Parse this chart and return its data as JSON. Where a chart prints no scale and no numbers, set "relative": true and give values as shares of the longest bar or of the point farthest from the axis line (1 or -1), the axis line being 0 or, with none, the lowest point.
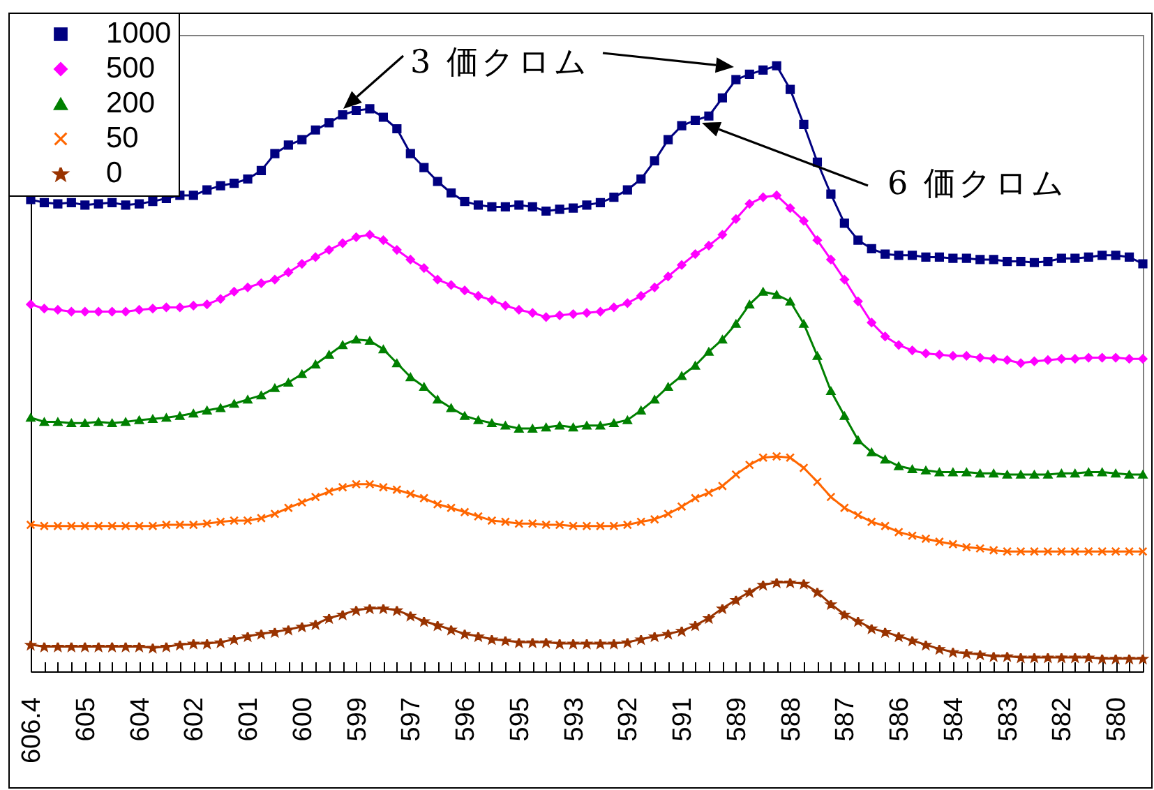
{
  "chart_data": {
    "type": "line",
    "relative": true,
    "categories": [
      "606.4",
      null,
      null,
      null,
      "605",
      null,
      null,
      null,
      "604",
      null,
      null,
      null,
      "602",
      null,
      null,
      null,
      "601",
      null,
      null,
      null,
      "600",
      null,
      null,
      null,
      "599",
      null,
      null,
      null,
      "597",
      null,
      null,
      null,
      "596",
      null,
      null,
      null,
      "595",
      null,
      null,
      null,
      "593",
      null,
      null,
      null,
      "592",
      null,
      null,
      null,
      "591",
      null,
      null,
      null,
      "589",
      null,
      null,
      null,
      "588",
      null,
      null,
      null,
      "587",
      null,
      null,
      null,
      "586",
      null,
      null,
      null,
      "584",
      null,
      null,
      null,
      "583",
      null,
      null,
      null,
      "582",
      null,
      null,
      null,
      "580",
      null,
      null
    ],
    "series": [
      {
        "name": "1000",
        "color": "#000080",
        "marker": "square",
        "values": [
          0.779,
          0.774,
          0.772,
          0.774,
          0.77,
          0.772,
          0.774,
          0.77,
          0.772,
          0.776,
          0.781,
          0.786,
          0.786,
          0.795,
          0.802,
          0.806,
          0.813,
          0.827,
          0.855,
          0.869,
          0.878,
          0.894,
          0.906,
          0.919,
          0.926,
          0.929,
          0.915,
          0.896,
          0.855,
          0.832,
          0.809,
          0.79,
          0.776,
          0.77,
          0.767,
          0.767,
          0.77,
          0.767,
          0.76,
          0.763,
          0.765,
          0.77,
          0.774,
          0.783,
          0.795,
          0.813,
          0.843,
          0.878,
          0.901,
          0.91,
          0.917,
          0.947,
          0.977,
          0.986,
          0.993,
          1,
          0.961,
          0.903,
          0.841,
          0.788,
          0.74,
          0.712,
          0.698,
          0.689,
          0.687,
          0.687,
          0.684,
          0.684,
          0.682,
          0.682,
          0.68,
          0.68,
          0.677,
          0.677,
          0.675,
          0.677,
          0.682,
          0.682,
          0.684,
          0.687,
          0.687,
          0.684,
          0.673
        ]
      },
      {
        "name": "500",
        "color": "#ff00ff",
        "marker": "diamond",
        "values": [
          0.606,
          0.599,
          0.597,
          0.594,
          0.594,
          0.594,
          0.594,
          0.594,
          0.597,
          0.599,
          0.601,
          0.601,
          0.604,
          0.606,
          0.615,
          0.627,
          0.634,
          0.641,
          0.647,
          0.659,
          0.673,
          0.684,
          0.696,
          0.707,
          0.717,
          0.721,
          0.712,
          0.696,
          0.68,
          0.666,
          0.647,
          0.638,
          0.629,
          0.62,
          0.613,
          0.604,
          0.597,
          0.592,
          0.585,
          0.588,
          0.59,
          0.592,
          0.594,
          0.601,
          0.608,
          0.62,
          0.634,
          0.652,
          0.671,
          0.689,
          0.703,
          0.721,
          0.747,
          0.772,
          0.783,
          0.786,
          0.765,
          0.744,
          0.712,
          0.68,
          0.647,
          0.611,
          0.576,
          0.553,
          0.539,
          0.53,
          0.525,
          0.523,
          0.521,
          0.521,
          0.518,
          0.516,
          0.514,
          0.509,
          0.512,
          0.514,
          0.516,
          0.516,
          0.518,
          0.518,
          0.518,
          0.516,
          0.516
        ]
      },
      {
        "name": "200",
        "color": "#008000",
        "marker": "triangle",
        "values": [
          0.419,
          0.412,
          0.412,
          0.41,
          0.41,
          0.412,
          0.41,
          0.412,
          0.415,
          0.417,
          0.419,
          0.422,
          0.426,
          0.431,
          0.435,
          0.442,
          0.449,
          0.456,
          0.468,
          0.477,
          0.491,
          0.507,
          0.523,
          0.539,
          0.548,
          0.546,
          0.532,
          0.509,
          0.486,
          0.47,
          0.449,
          0.435,
          0.422,
          0.415,
          0.41,
          0.406,
          0.401,
          0.401,
          0.403,
          0.406,
          0.403,
          0.406,
          0.406,
          0.41,
          0.415,
          0.431,
          0.449,
          0.47,
          0.488,
          0.505,
          0.528,
          0.548,
          0.574,
          0.606,
          0.627,
          0.622,
          0.611,
          0.574,
          0.521,
          0.463,
          0.422,
          0.382,
          0.362,
          0.35,
          0.339,
          0.334,
          0.332,
          0.329,
          0.329,
          0.329,
          0.327,
          0.327,
          0.325,
          0.325,
          0.325,
          0.325,
          0.327,
          0.327,
          0.329,
          0.329,
          0.327,
          0.325,
          0.325
        ]
      },
      {
        "name": "50",
        "color": "#ff6600",
        "marker": "cross",
        "values": [
          0.242,
          0.24,
          0.24,
          0.24,
          0.24,
          0.24,
          0.24,
          0.24,
          0.24,
          0.24,
          0.242,
          0.242,
          0.242,
          0.244,
          0.247,
          0.249,
          0.249,
          0.253,
          0.26,
          0.27,
          0.279,
          0.288,
          0.297,
          0.304,
          0.309,
          0.309,
          0.304,
          0.3,
          0.293,
          0.286,
          0.276,
          0.27,
          0.263,
          0.256,
          0.249,
          0.247,
          0.244,
          0.244,
          0.242,
          0.242,
          0.24,
          0.24,
          0.24,
          0.24,
          0.242,
          0.247,
          0.251,
          0.26,
          0.272,
          0.286,
          0.295,
          0.306,
          0.325,
          0.341,
          0.353,
          0.355,
          0.353,
          0.336,
          0.313,
          0.288,
          0.27,
          0.258,
          0.247,
          0.24,
          0.23,
          0.224,
          0.219,
          0.214,
          0.21,
          0.205,
          0.203,
          0.2,
          0.198,
          0.198,
          0.198,
          0.198,
          0.198,
          0.198,
          0.198,
          0.198,
          0.198,
          0.198,
          0.198
        ]
      },
      {
        "name": "0",
        "color": "#993300",
        "marker": "star",
        "values": [
          0.044,
          0.041,
          0.041,
          0.041,
          0.041,
          0.041,
          0.041,
          0.041,
          0.041,
          0.039,
          0.041,
          0.044,
          0.046,
          0.046,
          0.048,
          0.053,
          0.058,
          0.062,
          0.065,
          0.069,
          0.074,
          0.078,
          0.088,
          0.094,
          0.101,
          0.104,
          0.104,
          0.101,
          0.092,
          0.083,
          0.076,
          0.069,
          0.062,
          0.058,
          0.053,
          0.051,
          0.048,
          0.048,
          0.048,
          0.046,
          0.046,
          0.046,
          0.046,
          0.046,
          0.048,
          0.053,
          0.058,
          0.062,
          0.067,
          0.076,
          0.088,
          0.104,
          0.118,
          0.131,
          0.143,
          0.147,
          0.147,
          0.145,
          0.131,
          0.111,
          0.094,
          0.083,
          0.071,
          0.065,
          0.058,
          0.051,
          0.044,
          0.037,
          0.032,
          0.03,
          0.028,
          0.025,
          0.025,
          0.023,
          0.023,
          0.023,
          0.023,
          0.023,
          0.023,
          0.021,
          0.021,
          0.021,
          0.021
        ]
      }
    ],
    "legend": "top left",
    "annotations": [
      "3 価クロム",
      "6 価クロム"
    ]
  }
}
